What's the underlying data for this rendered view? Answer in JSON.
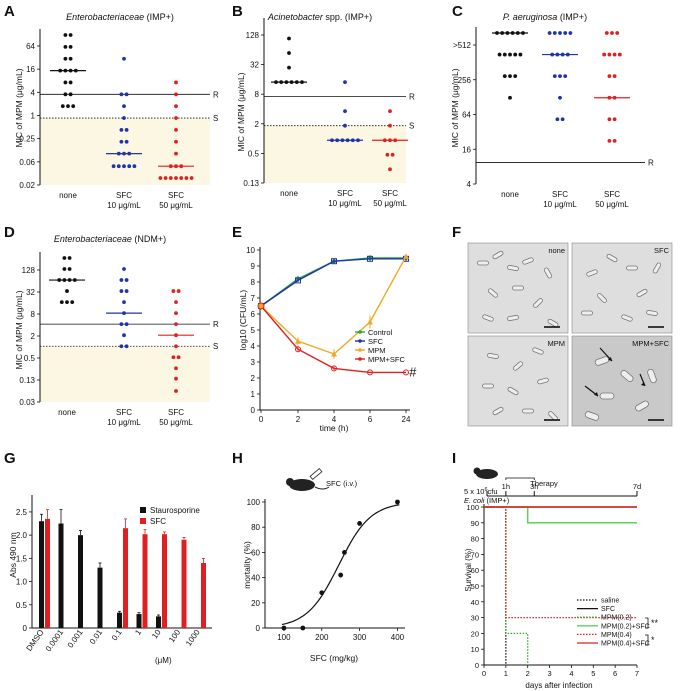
{
  "panels": {
    "A": {
      "label": "A",
      "title": "Enterobacteriaceae",
      "title_suffix": " (IMP+)",
      "ylabel": "MIC of MPM (μg/mL)",
      "yticks": [
        "64",
        "16",
        "4",
        "1",
        "0.25",
        "0.06",
        "0.02"
      ],
      "xticks": [
        "none",
        "SFC",
        "SFC"
      ],
      "xsub": [
        "10 μg/mL",
        "50 μg/mL"
      ],
      "R": "R",
      "S": "S"
    },
    "B": {
      "label": "B",
      "title": "Acinetobacter",
      "title_suffix": " spp. (IMP+)",
      "ylabel": "MIC of MPM (μg/mL)",
      "yticks": [
        "128",
        "32",
        "8",
        "2",
        "0.5",
        "0.13"
      ],
      "xticks": [
        "none",
        "SFC",
        "SFC"
      ],
      "xsub": [
        "10 μg/mL",
        "50 μg/mL"
      ],
      "R": "R",
      "S": "S"
    },
    "C": {
      "label": "C",
      "title": "P. aeruginosa",
      "title_suffix": " (IMP+)",
      "ylabel": "MIC of MPM (μg/mL)",
      "yticks": [
        ">512",
        "256",
        "64",
        "16",
        "4"
      ],
      "xticks": [
        "none",
        "SFC",
        "SFC"
      ],
      "xsub": [
        "10 μg/mL",
        "50 μg/mL"
      ],
      "R": "R"
    },
    "D": {
      "label": "D",
      "title": "Enterobacteriaceae",
      "title_suffix": " (NDM+)",
      "ylabel": "MIC of MPM (μg/mL)",
      "yticks": [
        "128",
        "32",
        "8",
        "2",
        "0.5",
        "0.13",
        "0.03"
      ],
      "xticks": [
        "none",
        "SFC",
        "SFC"
      ],
      "xsub": [
        "10 μg/mL",
        "50 μg/mL"
      ],
      "R": "R",
      "S": "S"
    },
    "E": {
      "label": "E",
      "ylabel": "log10 (CFU/mL)",
      "xlabel": "time (h)",
      "yticks": [
        "0",
        "1",
        "2",
        "3",
        "4",
        "5",
        "6",
        "7",
        "8",
        "9",
        "10"
      ],
      "xticks": [
        "0",
        "2",
        "4",
        "6",
        "24"
      ],
      "legend": [
        "Control",
        "SFC",
        "MPM",
        "MPM+SFC"
      ],
      "hash": "#"
    },
    "F": {
      "label": "F",
      "tiles": [
        "none",
        "SFC",
        "MPM",
        "MPM+SFC"
      ]
    },
    "G": {
      "label": "G",
      "ylabel": "Abs 490 nm",
      "yticks": [
        "0",
        "0.5",
        "1.0",
        "1.5",
        "2.0",
        "2.5"
      ],
      "xticks": [
        "DMSO",
        "0.0001",
        "0.001",
        "0.01",
        "0.1",
        "1",
        "10",
        "100",
        "1000"
      ],
      "unit": "(μM)",
      "legend": [
        "Staurosporine",
        "SFC"
      ]
    },
    "H": {
      "label": "H",
      "ylabel": "mortality (%)",
      "xlabel": "SFC (mg/kg)",
      "icon_label": "SFC (i.v.)",
      "yticks": [
        "0",
        "20",
        "40",
        "60",
        "80",
        "100"
      ],
      "xticks": [
        "100",
        "200",
        "300",
        "400"
      ]
    },
    "I": {
      "label": "I",
      "ylabel": "Survival (%)",
      "xlabel": "days after infection",
      "yticks": [
        "0",
        "10",
        "20",
        "30",
        "40",
        "50",
        "60",
        "70",
        "80",
        "90",
        "100"
      ],
      "xticks": [
        "0",
        "1",
        "2",
        "3",
        "4",
        "5",
        "6",
        "7"
      ],
      "inoc1": "5 x 10",
      "inoc_exp": "6",
      "inoc2": "cfu",
      "inoc_strain": "E. coli",
      "inoc_suffix": " (IMP+)",
      "therapy": "Therapy",
      "timepoints": [
        "1h",
        "3h",
        "7d"
      ],
      "legend": [
        "saline",
        "SFC",
        "MPM(0.2)",
        "MPM(0.2)+SFC",
        "MPM(0.4)",
        "MPM(0.4)+SFC"
      ],
      "sig": [
        "**",
        "*"
      ]
    }
  },
  "colors": {
    "black": "#111111",
    "blue": "#1f35a8",
    "red": "#e02020",
    "green": "#2eaa2e",
    "orange": "#f5a623",
    "cream": "#fcf7e3",
    "lime": "#5ad35a"
  },
  "chart_data": [
    {
      "type": "scatter",
      "panel": "A",
      "title": "Enterobacteriaceae (IMP+)",
      "ylabel": "MIC of MPM (μg/mL)",
      "yscale": "log2",
      "categories": [
        "none",
        "SFC 10 μg/mL",
        "SFC 50 μg/mL"
      ],
      "series": [
        {
          "name": "none",
          "values": [
            128,
            128,
            64,
            64,
            32,
            32,
            16,
            16,
            16,
            16,
            8,
            8,
            4,
            4,
            2,
            2,
            2
          ],
          "median": 16
        },
        {
          "name": "SFC 10 μg/mL",
          "values": [
            32,
            4,
            4,
            2,
            1,
            0.5,
            0.5,
            0.25,
            0.25,
            0.125,
            0.125,
            0.125,
            0.06,
            0.06,
            0.06,
            0.06,
            0.06
          ],
          "median": 0.125
        },
        {
          "name": "SFC 50 μg/mL",
          "values": [
            8,
            4,
            2,
            1,
            0.5,
            0.25,
            0.125,
            0.06,
            0.06,
            0.06,
            0.03,
            0.03,
            0.03,
            0.03,
            0.03,
            0.03,
            0.03
          ],
          "median": 0.06
        }
      ],
      "thresholds": {
        "R": 4,
        "S": 1
      },
      "ylim": [
        0.02,
        128
      ]
    },
    {
      "type": "scatter",
      "panel": "B",
      "title": "Acinetobacter spp. (IMP+)",
      "ylabel": "MIC of MPM (μg/mL)",
      "yscale": "log2",
      "categories": [
        "none",
        "SFC 10 μg/mL",
        "SFC 50 μg/mL"
      ],
      "series": [
        {
          "name": "none",
          "values": [
            128,
            64,
            32,
            16,
            16,
            16,
            16,
            16,
            16
          ],
          "median": 16
        },
        {
          "name": "SFC 10 μg/mL",
          "values": [
            16,
            4,
            2,
            1,
            1,
            1,
            1,
            1,
            1
          ],
          "median": 1
        },
        {
          "name": "SFC 50 μg/mL",
          "values": [
            4,
            2,
            1,
            1,
            1,
            0.5,
            0.5,
            0.25
          ],
          "median": 1
        }
      ],
      "thresholds": {
        "R": 8,
        "S": 2
      },
      "ylim": [
        0.13,
        256
      ]
    },
    {
      "type": "scatter",
      "panel": "C",
      "title": "P. aeruginosa (IMP+)",
      "ylabel": "MIC of MPM (μg/mL)",
      "yscale": "log2",
      "categories": [
        "none",
        "SFC 10 μg/mL",
        "SFC 50 μg/mL"
      ],
      "series": [
        {
          "name": "none",
          "values": [
            512,
            512,
            512,
            512,
            512,
            512,
            256,
            256,
            256,
            256,
            256,
            128,
            128,
            128,
            64
          ],
          "median": 512
        },
        {
          "name": "SFC 10 μg/mL",
          "values": [
            512,
            512,
            512,
            512,
            512,
            256,
            256,
            256,
            256,
            128,
            128,
            128,
            64,
            32,
            32
          ],
          "median": 256
        },
        {
          "name": "SFC 50 μg/mL",
          "values": [
            512,
            512,
            512,
            256,
            256,
            256,
            256,
            128,
            128,
            64,
            64,
            32,
            32,
            16,
            16
          ],
          "median": 64
        }
      ],
      "thresholds": {
        "R": 8
      },
      "ylim": [
        4,
        512
      ]
    },
    {
      "type": "scatter",
      "panel": "D",
      "title": "Enterobacteriaceae (NDM+)",
      "ylabel": "MIC of MPM (μg/mL)",
      "yscale": "log2",
      "categories": [
        "none",
        "SFC 10 μg/mL",
        "SFC 50 μg/mL"
      ],
      "series": [
        {
          "name": "none",
          "values": [
            256,
            256,
            128,
            128,
            64,
            64,
            64,
            64,
            32,
            16,
            16,
            16
          ],
          "median": 64
        },
        {
          "name": "SFC 10 μg/mL",
          "values": [
            128,
            64,
            64,
            32,
            32,
            16,
            8,
            4,
            4,
            2,
            1,
            1
          ],
          "median": 8
        },
        {
          "name": "SFC 50 μg/mL",
          "values": [
            32,
            32,
            16,
            8,
            4,
            2,
            1,
            0.5,
            0.5,
            0.25,
            0.13,
            0.06
          ],
          "median": 2
        }
      ],
      "thresholds": {
        "R": 4,
        "S": 1
      },
      "ylim": [
        0.03,
        256
      ]
    },
    {
      "type": "line",
      "panel": "E",
      "xlabel": "time (h)",
      "ylabel": "log10 (CFU/mL)",
      "x": [
        0,
        2,
        4,
        6,
        24
      ],
      "series": [
        {
          "name": "Control",
          "values": [
            6.5,
            8.2,
            9.3,
            9.5,
            9.5
          ],
          "err": [
            0.1,
            0.1,
            0.1,
            0.1,
            0.1
          ]
        },
        {
          "name": "SFC",
          "values": [
            6.5,
            8.1,
            9.3,
            9.45,
            9.45
          ],
          "err": [
            0.1,
            0.1,
            0.1,
            0.1,
            0.1
          ]
        },
        {
          "name": "MPM",
          "values": [
            6.5,
            4.3,
            3.5,
            5.5,
            9.6
          ],
          "err": [
            0.1,
            0.25,
            0.3,
            0.4,
            0.1
          ]
        },
        {
          "name": "MPM+SFC",
          "values": [
            6.5,
            3.8,
            2.6,
            2.35,
            2.35
          ],
          "err": [
            0.1,
            0.1,
            0.1,
            0.05,
            0.05
          ]
        }
      ],
      "ylim": [
        0,
        10
      ]
    },
    {
      "type": "bar",
      "panel": "G",
      "ylabel": "Abs 490 nm",
      "unit": "μM",
      "categories": [
        "DMSO",
        "0.0001",
        "0.001",
        "0.01",
        "0.1",
        "1",
        "10",
        "100",
        "1000"
      ],
      "series": [
        {
          "name": "Staurosporine",
          "values": [
            2.3,
            2.25,
            2.0,
            1.3,
            0.33,
            0.3,
            0.25,
            null,
            null
          ],
          "err": [
            0.15,
            0.3,
            0.1,
            0.1,
            0.03,
            0.03,
            0.03,
            null,
            null
          ]
        },
        {
          "name": "SFC",
          "values": [
            2.35,
            null,
            null,
            null,
            2.15,
            2.02,
            2.02,
            1.9,
            1.4
          ],
          "err": [
            0.2,
            null,
            null,
            null,
            0.2,
            0.1,
            0.05,
            0.05,
            0.1
          ]
        }
      ],
      "ylim": [
        0,
        2.8
      ]
    },
    {
      "type": "scatter",
      "panel": "H",
      "xlabel": "SFC (mg/kg)",
      "ylabel": "mortality (%)",
      "x": [
        100,
        150,
        200,
        250,
        260,
        300,
        400
      ],
      "y": [
        0,
        0,
        28,
        42,
        60,
        83,
        100
      ],
      "fit": "sigmoid",
      "xlim": [
        50,
        420
      ],
      "ylim": [
        0,
        100
      ]
    },
    {
      "type": "line",
      "panel": "I",
      "xlabel": "days after infection",
      "ylabel": "Survival (%)",
      "step": true,
      "series": [
        {
          "name": "saline",
          "steps": [
            [
              0,
              100
            ],
            [
              1,
              100
            ],
            [
              1,
              0
            ]
          ]
        },
        {
          "name": "SFC",
          "steps": [
            [
              0,
              100
            ],
            [
              7,
              100
            ]
          ]
        },
        {
          "name": "MPM(0.2)",
          "steps": [
            [
              0,
              100
            ],
            [
              1,
              100
            ],
            [
              1,
              20
            ],
            [
              2,
              20
            ],
            [
              2,
              0
            ]
          ]
        },
        {
          "name": "MPM(0.2)+SFC",
          "steps": [
            [
              0,
              100
            ],
            [
              2,
              100
            ],
            [
              2,
              90
            ],
            [
              7,
              90
            ]
          ]
        },
        {
          "name": "MPM(0.4)",
          "steps": [
            [
              0,
              100
            ],
            [
              1,
              100
            ],
            [
              1,
              30
            ],
            [
              7,
              30
            ]
          ]
        },
        {
          "name": "MPM(0.4)+SFC",
          "steps": [
            [
              0,
              100
            ],
            [
              7,
              100
            ]
          ]
        }
      ],
      "xlim": [
        0,
        7
      ],
      "ylim": [
        0,
        100
      ]
    }
  ]
}
